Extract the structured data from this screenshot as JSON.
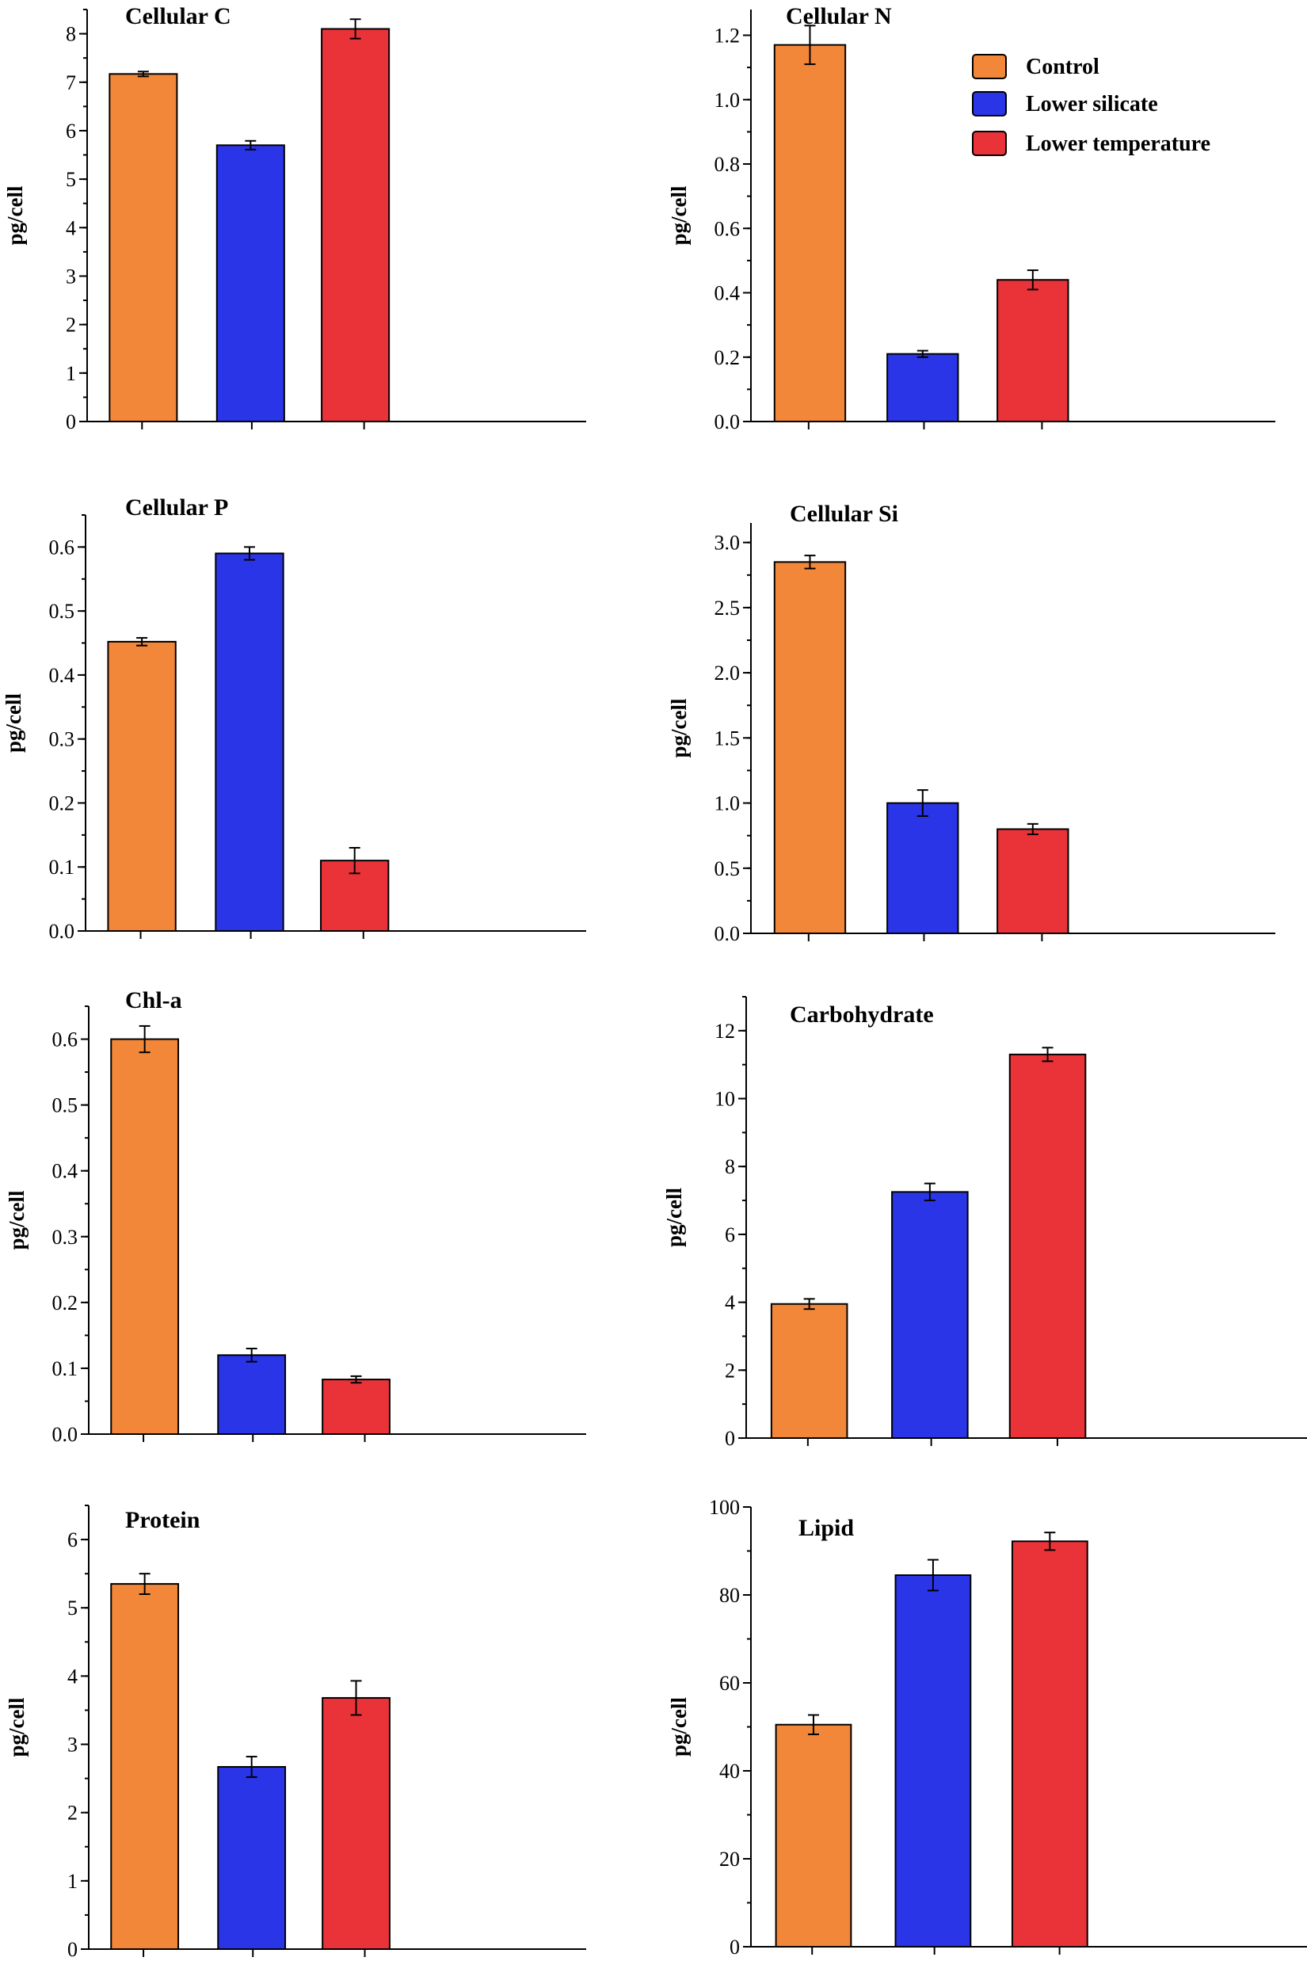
{
  "colors": {
    "control": "#F2873A",
    "lower_silicate": "#2B35E8",
    "lower_temperature": "#EA3339"
  },
  "legend": [
    {
      "label": "Control",
      "color": "#F2873A"
    },
    {
      "label": "Lower silicate",
      "color": "#2B35E8"
    },
    {
      "label": "Lower temperature",
      "color": "#EA3339"
    }
  ],
  "chart_data": [
    {
      "type": "bar",
      "title": "Cellular C",
      "ylabel": "pg/cell",
      "ylim": [
        0,
        8.5
      ],
      "ticks": [
        0,
        1,
        2,
        3,
        4,
        5,
        6,
        7,
        8
      ],
      "tick_labels": [
        "0",
        "1",
        "2",
        "3",
        "4",
        "5",
        "6",
        "7",
        "8"
      ],
      "minor": 0.5,
      "categories": [
        "Control",
        "Lower silicate",
        "Lower temperature"
      ],
      "values": [
        7.17,
        5.7,
        8.1
      ],
      "errors": [
        0.05,
        0.09,
        0.2
      ]
    },
    {
      "type": "bar",
      "title": "Cellular N",
      "ylabel": "pg/cell",
      "ylim": [
        0,
        1.28
      ],
      "ticks": [
        0,
        0.2,
        0.4,
        0.6,
        0.8,
        1.0,
        1.2
      ],
      "tick_labels": [
        "0.0",
        "0.2",
        "0.4",
        "0.6",
        "0.8",
        "1.0",
        "1.2"
      ],
      "minor": 0.1,
      "categories": [
        "Control",
        "Lower silicate",
        "Lower temperature"
      ],
      "values": [
        1.17,
        0.21,
        0.44
      ],
      "errors": [
        0.06,
        0.01,
        0.03
      ]
    },
    {
      "type": "bar",
      "title": "Cellular P",
      "ylabel": "pg/cell",
      "ylim": [
        0,
        0.65
      ],
      "ticks": [
        0,
        0.1,
        0.2,
        0.3,
        0.4,
        0.5,
        0.6
      ],
      "tick_labels": [
        "0.0",
        "0.1",
        "0.2",
        "0.3",
        "0.4",
        "0.5",
        "0.6"
      ],
      "minor": 0.05,
      "categories": [
        "Control",
        "Lower silicate",
        "Lower temperature"
      ],
      "values": [
        0.452,
        0.59,
        0.11
      ],
      "errors": [
        0.006,
        0.01,
        0.02
      ]
    },
    {
      "type": "bar",
      "title": "Cellular Si",
      "ylabel": "pg/cell",
      "ylim": [
        0,
        3.15
      ],
      "ticks": [
        0,
        0.5,
        1.0,
        1.5,
        2.0,
        2.5,
        3.0
      ],
      "tick_labels": [
        "0.0",
        "0.5",
        "1.0",
        "1.5",
        "2.0",
        "2.5",
        "3.0"
      ],
      "minor": 0.25,
      "categories": [
        "Control",
        "Lower silicate",
        "Lower temperature"
      ],
      "values": [
        2.85,
        1.0,
        0.8
      ],
      "errors": [
        0.05,
        0.1,
        0.04
      ]
    },
    {
      "type": "bar",
      "title": "Chl-a",
      "ylabel": "pg/cell",
      "ylim": [
        0,
        0.65
      ],
      "ticks": [
        0,
        0.1,
        0.2,
        0.3,
        0.4,
        0.5,
        0.6
      ],
      "tick_labels": [
        "0.0",
        "0.1",
        "0.2",
        "0.3",
        "0.4",
        "0.5",
        "0.6"
      ],
      "minor": 0.05,
      "categories": [
        "Control",
        "Lower silicate",
        "Lower temperature"
      ],
      "values": [
        0.6,
        0.12,
        0.083
      ],
      "errors": [
        0.02,
        0.01,
        0.005
      ]
    },
    {
      "type": "bar",
      "title": "Carbohydrate",
      "ylabel": "pg/cell",
      "ylim": [
        0,
        13
      ],
      "ticks": [
        0,
        2,
        4,
        6,
        8,
        10,
        12
      ],
      "tick_labels": [
        "0",
        "2",
        "4",
        "6",
        "8",
        "10",
        "12"
      ],
      "minor": 1,
      "categories": [
        "Control",
        "Lower silicate",
        "Lower temperature"
      ],
      "values": [
        3.95,
        7.25,
        11.3
      ],
      "errors": [
        0.15,
        0.25,
        0.2
      ]
    },
    {
      "type": "bar",
      "title": "Protein",
      "ylabel": "pg/cell",
      "ylim": [
        0,
        6.5
      ],
      "ticks": [
        0,
        1,
        2,
        3,
        4,
        5,
        6
      ],
      "tick_labels": [
        "0",
        "1",
        "2",
        "3",
        "4",
        "5",
        "6"
      ],
      "minor": 0.5,
      "categories": [
        "Control",
        "Lower silicate",
        "Lower temperature"
      ],
      "values": [
        5.35,
        2.67,
        3.68
      ],
      "errors": [
        0.15,
        0.15,
        0.25
      ]
    },
    {
      "type": "bar",
      "title": "Lipid",
      "ylabel": "pg/cell",
      "ylim": [
        0,
        100
      ],
      "ticks": [
        0,
        20,
        40,
        60,
        80,
        100
      ],
      "tick_labels": [
        "0",
        "20",
        "40",
        "60",
        "80",
        "100"
      ],
      "minor": 10,
      "categories": [
        "Control",
        "Lower silicate",
        "Lower temperature"
      ],
      "values": [
        50.5,
        84.5,
        92.2
      ],
      "errors": [
        2.2,
        3.5,
        2.0
      ]
    }
  ]
}
